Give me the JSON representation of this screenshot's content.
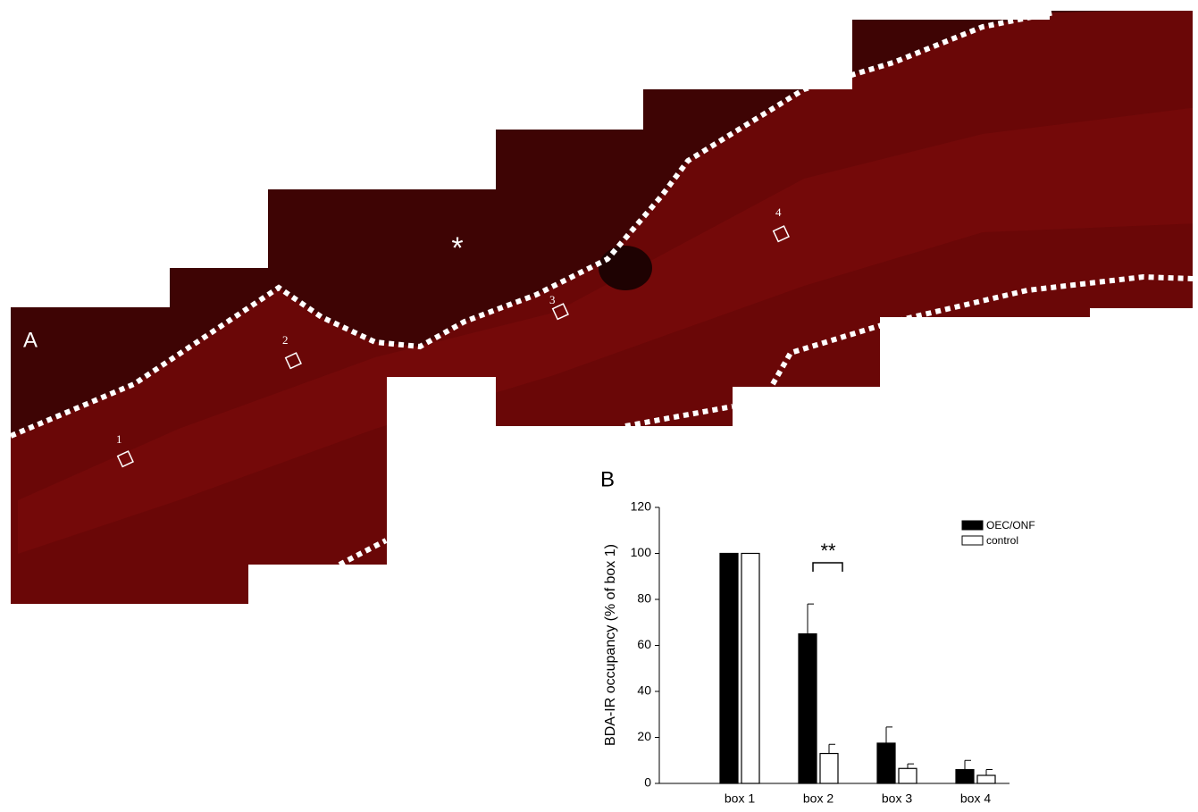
{
  "panel_a": {
    "label": "A",
    "asterisk": "*",
    "boxes": [
      "1",
      "2",
      "3",
      "4"
    ]
  },
  "chart_data": {
    "type": "bar",
    "panel_label": "B",
    "ylabel": "BDA-IR occupancy (% of box 1)",
    "categories": [
      "box 1",
      "box 2",
      "box 3",
      "box 4"
    ],
    "series": [
      {
        "name": "OEC/ONF",
        "color": "#000000",
        "values": [
          100,
          65,
          17.5,
          6
        ],
        "errors": [
          0,
          13,
          7,
          4
        ]
      },
      {
        "name": "control",
        "color": "#ffffff",
        "values": [
          100,
          13,
          6.5,
          3.5
        ],
        "errors": [
          0,
          4,
          2,
          2.5
        ]
      }
    ],
    "annotation": "**",
    "ylim": [
      0,
      120
    ],
    "yticks": [
      0,
      20,
      40,
      60,
      80,
      100,
      120
    ]
  }
}
